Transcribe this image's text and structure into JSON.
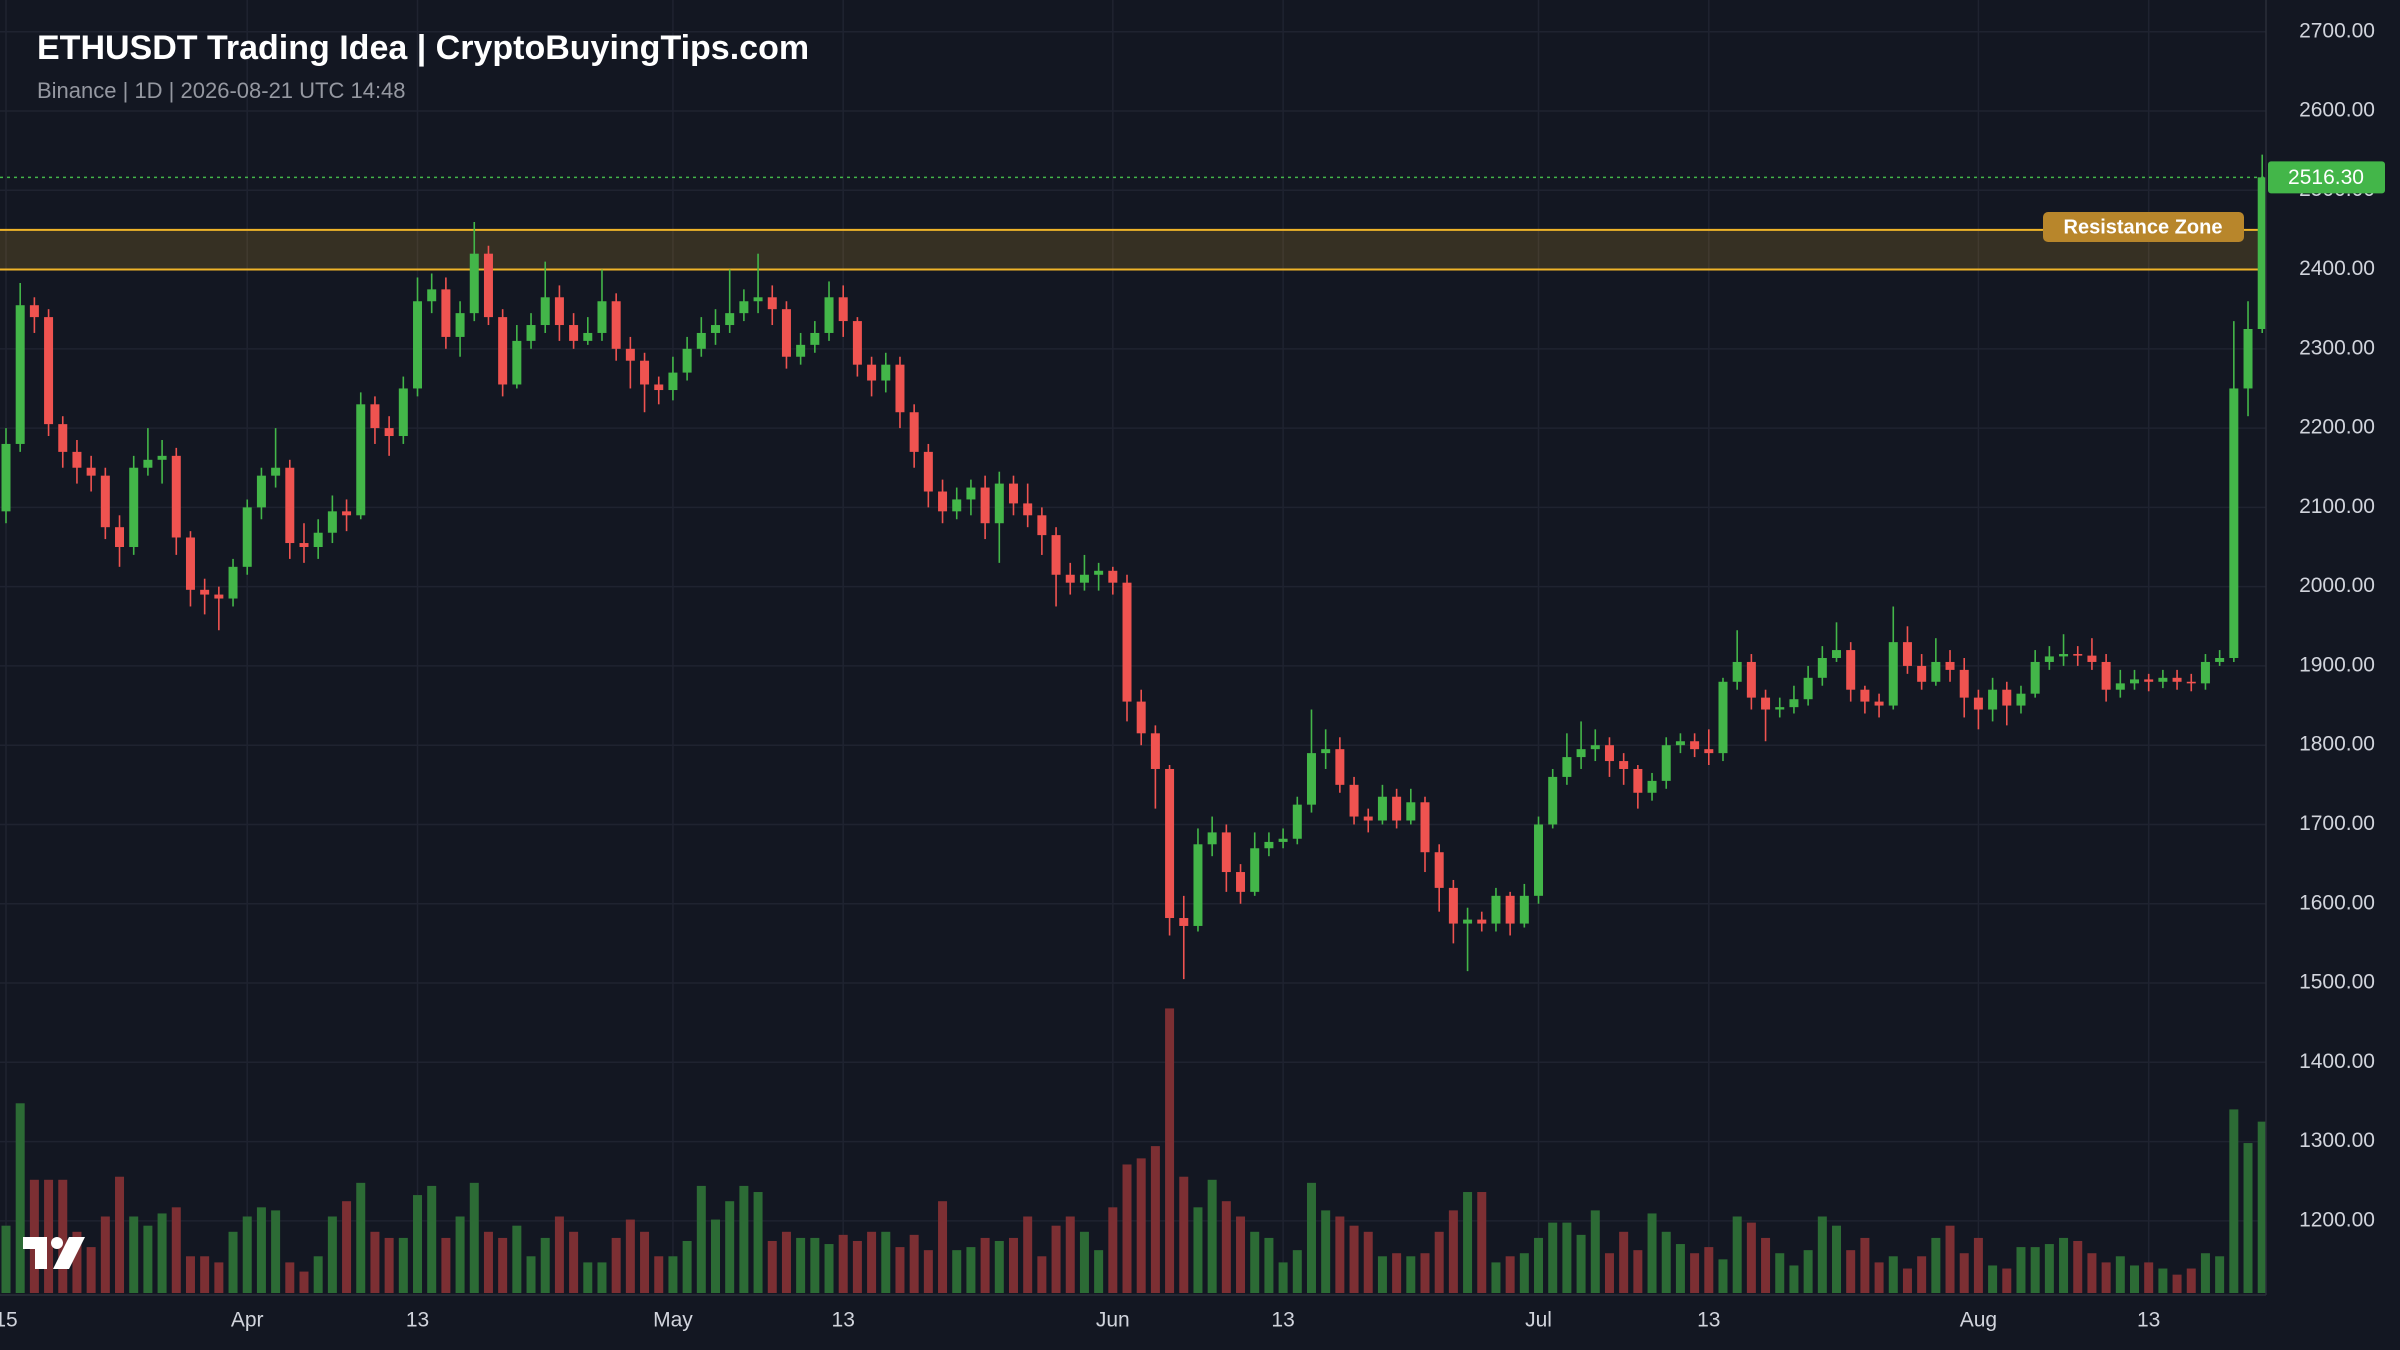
{
  "chart_data": {
    "type": "candlestick",
    "title": "ETHUSDT Trading Idea | CryptoBuyingTips.com",
    "subtitle": "Binance | 1D | 2026-08-21 UTC 14:48",
    "open": [
      2095,
      2180,
      2355,
      2340,
      2205,
      2170,
      2150,
      2140,
      2075,
      2050,
      2150,
      2160,
      2165,
      2062,
      1996,
      1990,
      1985,
      2025,
      2100,
      2140,
      2150,
      2055,
      2050,
      2068,
      2095,
      2090,
      2230,
      2200,
      2190,
      2250,
      2360,
      2375,
      2315,
      2345,
      2420,
      2340,
      2255,
      2310,
      2330,
      2365,
      2330,
      2310,
      2320,
      2360,
      2300,
      2285,
      2255,
      2248,
      2270,
      2300,
      2320,
      2330,
      2345,
      2360,
      2365,
      2350,
      2290,
      2305,
      2320,
      2365,
      2335,
      2280,
      2260,
      2280,
      2220,
      2170,
      2120,
      2095,
      2110,
      2125,
      2080,
      2130,
      2105,
      2090,
      2065,
      2015,
      2005,
      2015,
      2020,
      2005,
      1855,
      1815,
      1770,
      1582,
      1572,
      1675,
      1690,
      1640,
      1615,
      1670,
      1678,
      1682,
      1725,
      1790,
      1795,
      1750,
      1710,
      1705,
      1735,
      1705,
      1728,
      1665,
      1620,
      1575,
      1580,
      1575,
      1610,
      1575,
      1610,
      1700,
      1760,
      1785,
      1795,
      1800,
      1780,
      1770,
      1740,
      1755,
      1800,
      1805,
      1795,
      1790,
      1880,
      1905,
      1860,
      1845,
      1848,
      1858,
      1885,
      1910,
      1920,
      1870,
      1855,
      1850,
      1930,
      1900,
      1880,
      1905,
      1895,
      1860,
      1845,
      1870,
      1850,
      1865,
      1905,
      1912,
      1915,
      1913,
      1905,
      1870,
      1878,
      1883,
      1880,
      1885,
      1880,
      1878,
      1905,
      1910,
      2250,
      2325
    ],
    "high": [
      2200,
      2383,
      2365,
      2350,
      2215,
      2185,
      2165,
      2150,
      2090,
      2165,
      2200,
      2185,
      2175,
      2070,
      2010,
      2000,
      2035,
      2110,
      2150,
      2200,
      2160,
      2080,
      2085,
      2115,
      2110,
      2245,
      2240,
      2215,
      2265,
      2390,
      2395,
      2390,
      2360,
      2460,
      2430,
      2350,
      2330,
      2345,
      2410,
      2380,
      2345,
      2340,
      2400,
      2370,
      2315,
      2295,
      2265,
      2290,
      2315,
      2340,
      2350,
      2400,
      2375,
      2420,
      2380,
      2360,
      2320,
      2335,
      2385,
      2380,
      2340,
      2290,
      2295,
      2290,
      2230,
      2180,
      2135,
      2125,
      2135,
      2140,
      2145,
      2140,
      2130,
      2100,
      2075,
      2030,
      2040,
      2030,
      2025,
      2015,
      1870,
      1825,
      1775,
      1610,
      1695,
      1710,
      1700,
      1650,
      1690,
      1690,
      1695,
      1735,
      1845,
      1820,
      1810,
      1760,
      1720,
      1750,
      1745,
      1745,
      1735,
      1675,
      1630,
      1595,
      1590,
      1620,
      1615,
      1625,
      1710,
      1770,
      1815,
      1830,
      1820,
      1810,
      1790,
      1775,
      1765,
      1810,
      1815,
      1815,
      1820,
      1885,
      1945,
      1915,
      1870,
      1860,
      1875,
      1900,
      1925,
      1955,
      1930,
      1875,
      1865,
      1975,
      1950,
      1915,
      1935,
      1920,
      1910,
      1870,
      1885,
      1880,
      1875,
      1920,
      1925,
      1940,
      1925,
      1935,
      1915,
      1895,
      1895,
      1890,
      1895,
      1895,
      1890,
      1915,
      1920,
      2335,
      2360,
      2545
    ],
    "low": [
      2080,
      2170,
      2320,
      2190,
      2150,
      2130,
      2120,
      2060,
      2025,
      2040,
      2140,
      2130,
      2040,
      1975,
      1965,
      1945,
      1975,
      2015,
      2085,
      2125,
      2035,
      2030,
      2035,
      2055,
      2070,
      2085,
      2180,
      2165,
      2180,
      2240,
      2345,
      2300,
      2290,
      2335,
      2330,
      2240,
      2250,
      2300,
      2320,
      2310,
      2300,
      2305,
      2310,
      2285,
      2250,
      2220,
      2230,
      2235,
      2260,
      2290,
      2305,
      2320,
      2335,
      2345,
      2330,
      2275,
      2280,
      2295,
      2310,
      2315,
      2265,
      2240,
      2245,
      2200,
      2150,
      2100,
      2080,
      2085,
      2090,
      2060,
      2030,
      2090,
      2075,
      2040,
      1975,
      1990,
      1995,
      1995,
      1990,
      1830,
      1800,
      1720,
      1560,
      1505,
      1565,
      1660,
      1615,
      1600,
      1610,
      1660,
      1670,
      1675,
      1715,
      1770,
      1740,
      1700,
      1690,
      1700,
      1695,
      1700,
      1640,
      1590,
      1550,
      1515,
      1565,
      1565,
      1560,
      1570,
      1600,
      1695,
      1750,
      1770,
      1780,
      1760,
      1750,
      1720,
      1730,
      1745,
      1790,
      1785,
      1775,
      1780,
      1870,
      1845,
      1805,
      1835,
      1840,
      1850,
      1875,
      1905,
      1855,
      1840,
      1835,
      1845,
      1890,
      1870,
      1875,
      1880,
      1835,
      1820,
      1830,
      1825,
      1840,
      1860,
      1895,
      1900,
      1900,
      1895,
      1855,
      1860,
      1870,
      1868,
      1872,
      1870,
      1868,
      1870,
      1900,
      1905,
      2215,
      2320
    ],
    "close": [
      2180,
      2355,
      2340,
      2205,
      2170,
      2150,
      2140,
      2075,
      2050,
      2150,
      2160,
      2165,
      2062,
      1996,
      1990,
      1985,
      2025,
      2100,
      2140,
      2150,
      2055,
      2050,
      2068,
      2095,
      2090,
      2230,
      2200,
      2190,
      2250,
      2360,
      2375,
      2315,
      2345,
      2420,
      2340,
      2255,
      2310,
      2330,
      2365,
      2330,
      2310,
      2320,
      2360,
      2300,
      2285,
      2255,
      2248,
      2270,
      2300,
      2320,
      2330,
      2345,
      2360,
      2365,
      2350,
      2290,
      2305,
      2320,
      2365,
      2335,
      2280,
      2260,
      2280,
      2220,
      2170,
      2120,
      2095,
      2110,
      2125,
      2080,
      2130,
      2105,
      2090,
      2065,
      2015,
      2005,
      2015,
      2020,
      2005,
      1855,
      1815,
      1770,
      1582,
      1572,
      1675,
      1690,
      1640,
      1615,
      1670,
      1678,
      1682,
      1725,
      1790,
      1795,
      1750,
      1710,
      1705,
      1735,
      1705,
      1728,
      1665,
      1620,
      1575,
      1580,
      1575,
      1610,
      1575,
      1610,
      1700,
      1760,
      1785,
      1795,
      1800,
      1780,
      1770,
      1740,
      1755,
      1800,
      1805,
      1795,
      1790,
      1880,
      1905,
      1860,
      1845,
      1848,
      1858,
      1885,
      1910,
      1920,
      1870,
      1855,
      1850,
      1930,
      1900,
      1880,
      1905,
      1895,
      1860,
      1845,
      1870,
      1850,
      1865,
      1905,
      1912,
      1915,
      1913,
      1905,
      1870,
      1878,
      1883,
      1880,
      1885,
      1880,
      1878,
      1905,
      1910,
      2250,
      2325,
      2516.3
    ],
    "volume": [
      22,
      62,
      37,
      37,
      37,
      20,
      15,
      25,
      38,
      25,
      22,
      26,
      28,
      12,
      12,
      10,
      20,
      25,
      28,
      27,
      10,
      7,
      12,
      25,
      30,
      36,
      20,
      18,
      18,
      32,
      35,
      18,
      25,
      36,
      20,
      18,
      22,
      12,
      18,
      25,
      20,
      10,
      10,
      18,
      24,
      20,
      12,
      12,
      17,
      35,
      24,
      30,
      35,
      33,
      17,
      20,
      18,
      18,
      16,
      19,
      17,
      20,
      20,
      15,
      19,
      14,
      30,
      14,
      15,
      18,
      17,
      18,
      25,
      12,
      22,
      25,
      20,
      14,
      28,
      42,
      44,
      48,
      93,
      38,
      28,
      37,
      30,
      25,
      20,
      18,
      10,
      14,
      36,
      27,
      25,
      22,
      20,
      12,
      13,
      12,
      13,
      20,
      27,
      33,
      33,
      10,
      12,
      13,
      18,
      23,
      23,
      19,
      27,
      13,
      20,
      14,
      26,
      20,
      16,
      13,
      15,
      11,
      25,
      23,
      18,
      13,
      9,
      14,
      25,
      22,
      14,
      18,
      10,
      12,
      8,
      12,
      18,
      22,
      13,
      18,
      9,
      8,
      15,
      15,
      16,
      18,
      17,
      13,
      10,
      12,
      9,
      10,
      8,
      6,
      8,
      13,
      12,
      60,
      49,
      56
    ],
    "up_color": "#43b649",
    "down_color": "#ef5350",
    "volume_up_color": "#2c6b35",
    "volume_down_color": "#7c2f33",
    "ylim": [
      1109,
      2740
    ],
    "volume_lim": [
      0,
      100
    ],
    "yticks": [
      {
        "value": 1200,
        "label": "1200.00"
      },
      {
        "value": 1300,
        "label": "1300.00"
      },
      {
        "value": 1400,
        "label": "1400.00"
      },
      {
        "value": 1500,
        "label": "1500.00"
      },
      {
        "value": 1600,
        "label": "1600.00"
      },
      {
        "value": 1700,
        "label": "1700.00"
      },
      {
        "value": 1800,
        "label": "1800.00"
      },
      {
        "value": 1900,
        "label": "1900.00"
      },
      {
        "value": 2000,
        "label": "2000.00"
      },
      {
        "value": 2100,
        "label": "2100.00"
      },
      {
        "value": 2200,
        "label": "2200.00"
      },
      {
        "value": 2300,
        "label": "2300.00"
      },
      {
        "value": 2400,
        "label": "2400.00"
      },
      {
        "value": 2500,
        "label": "2500.00"
      },
      {
        "value": 2600,
        "label": "2600.00"
      },
      {
        "value": 2700,
        "label": "2700.00"
      }
    ],
    "xticks": [
      {
        "value": 0,
        "label": "15"
      },
      {
        "value": 17,
        "label": "Apr"
      },
      {
        "value": 29,
        "label": "13"
      },
      {
        "value": 47,
        "label": "May"
      },
      {
        "value": 59,
        "label": "13"
      },
      {
        "value": 78,
        "label": "Jun"
      },
      {
        "value": 90,
        "label": "13"
      },
      {
        "value": 108,
        "label": "Jul"
      },
      {
        "value": 120,
        "label": "13"
      },
      {
        "value": 139,
        "label": "Aug"
      },
      {
        "value": 151,
        "label": "13"
      }
    ],
    "grid": true,
    "resistance_zone": {
      "low": 2400,
      "high": 2450,
      "label": "Resistance Zone",
      "color": "#f0b429"
    },
    "last_price": {
      "value": 2516.3,
      "label": "2516.30",
      "color": "#43b649"
    }
  }
}
